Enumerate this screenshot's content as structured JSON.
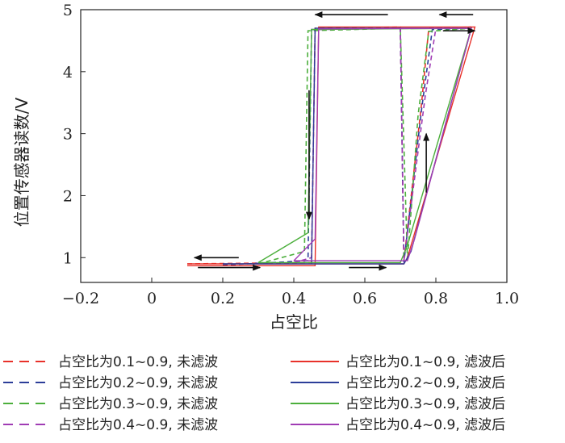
{
  "chart_data": {
    "type": "line",
    "xlabel": "占空比",
    "ylabel": "位置传感器读数/V",
    "xlim": [
      -0.2,
      1.0
    ],
    "ylim": [
      0.6,
      5.0
    ],
    "x_ticks": [
      "−0.2",
      "0",
      "0.2",
      "0.4",
      "0.6",
      "0.8",
      "1.0"
    ],
    "x_tick_values": [
      -0.2,
      0,
      0.2,
      0.4,
      0.6,
      0.8,
      1.0
    ],
    "y_ticks": [
      "1",
      "2",
      "3",
      "4",
      "5"
    ],
    "y_tick_values": [
      1,
      2,
      3,
      4,
      5
    ],
    "grid": false,
    "legend_position": "bottom",
    "colors": {
      "red": "#e8312a",
      "blue": "#2c3e99",
      "green": "#4caf3c",
      "purple": "#a03cb4"
    },
    "series": [
      {
        "name": "占空比为0.1~0.9, 未滤波",
        "color": "#e8312a",
        "style": "dashed",
        "x": [
          0.1,
          0.45,
          0.46,
          0.7,
          0.71,
          0.76,
          0.78,
          0.9
        ],
        "y": [
          0.9,
          0.92,
          4.7,
          4.72,
          0.95,
          3.5,
          4.7,
          4.72
        ]
      },
      {
        "name": "占空比为0.2~0.9, 未滤波",
        "color": "#2c3e99",
        "style": "dashed",
        "x": [
          0.2,
          0.44,
          0.45,
          0.7,
          0.71,
          0.76,
          0.79,
          0.9
        ],
        "y": [
          0.88,
          0.95,
          4.68,
          4.7,
          0.92,
          3.4,
          4.68,
          4.7
        ]
      },
      {
        "name": "占空比为0.3~0.9, 未滤波",
        "color": "#4caf3c",
        "style": "dashed",
        "x": [
          0.3,
          0.43,
          0.44,
          0.7,
          0.72,
          0.75,
          0.78,
          0.9
        ],
        "y": [
          0.9,
          1.1,
          4.66,
          4.7,
          0.95,
          3.3,
          4.65,
          4.7
        ]
      },
      {
        "name": "占空比为0.4~0.9, 未滤波",
        "color": "#a03cb4",
        "style": "dashed",
        "x": [
          0.4,
          0.45,
          0.46,
          0.7,
          0.71,
          0.77,
          0.8,
          0.9
        ],
        "y": [
          0.92,
          1.0,
          4.68,
          4.7,
          0.95,
          3.6,
          4.7,
          4.72
        ]
      },
      {
        "name": "占空比为0.1~0.9, 滤波后",
        "color": "#e8312a",
        "style": "solid",
        "x": [
          0.1,
          0.46,
          0.47,
          0.91,
          0.91,
          0.72,
          0.71,
          0.1
        ],
        "y": [
          0.87,
          0.87,
          4.72,
          4.72,
          4.72,
          1.0,
          0.9,
          0.9
        ]
      },
      {
        "name": "占空比为0.2~0.9, 滤波后",
        "color": "#2c3e99",
        "style": "solid",
        "x": [
          0.2,
          0.45,
          0.46,
          0.9,
          0.9,
          0.73,
          0.71,
          0.2
        ],
        "y": [
          0.9,
          0.9,
          4.7,
          4.7,
          4.7,
          1.1,
          0.9,
          0.9
        ]
      },
      {
        "name": "占空比为0.3~0.9, 滤波后",
        "color": "#4caf3c",
        "style": "solid",
        "x": [
          0.3,
          0.44,
          0.45,
          0.9,
          0.9,
          0.72,
          0.7,
          0.3
        ],
        "y": [
          0.92,
          1.4,
          4.68,
          4.7,
          4.7,
          1.2,
          0.92,
          0.92
        ]
      },
      {
        "name": "占空比为0.4~0.9, 滤波后",
        "color": "#a03cb4",
        "style": "solid",
        "x": [
          0.4,
          0.46,
          0.47,
          0.9,
          0.9,
          0.74,
          0.72,
          0.4
        ],
        "y": [
          0.95,
          1.3,
          4.69,
          4.7,
          4.7,
          1.3,
          0.95,
          0.95
        ]
      }
    ]
  }
}
